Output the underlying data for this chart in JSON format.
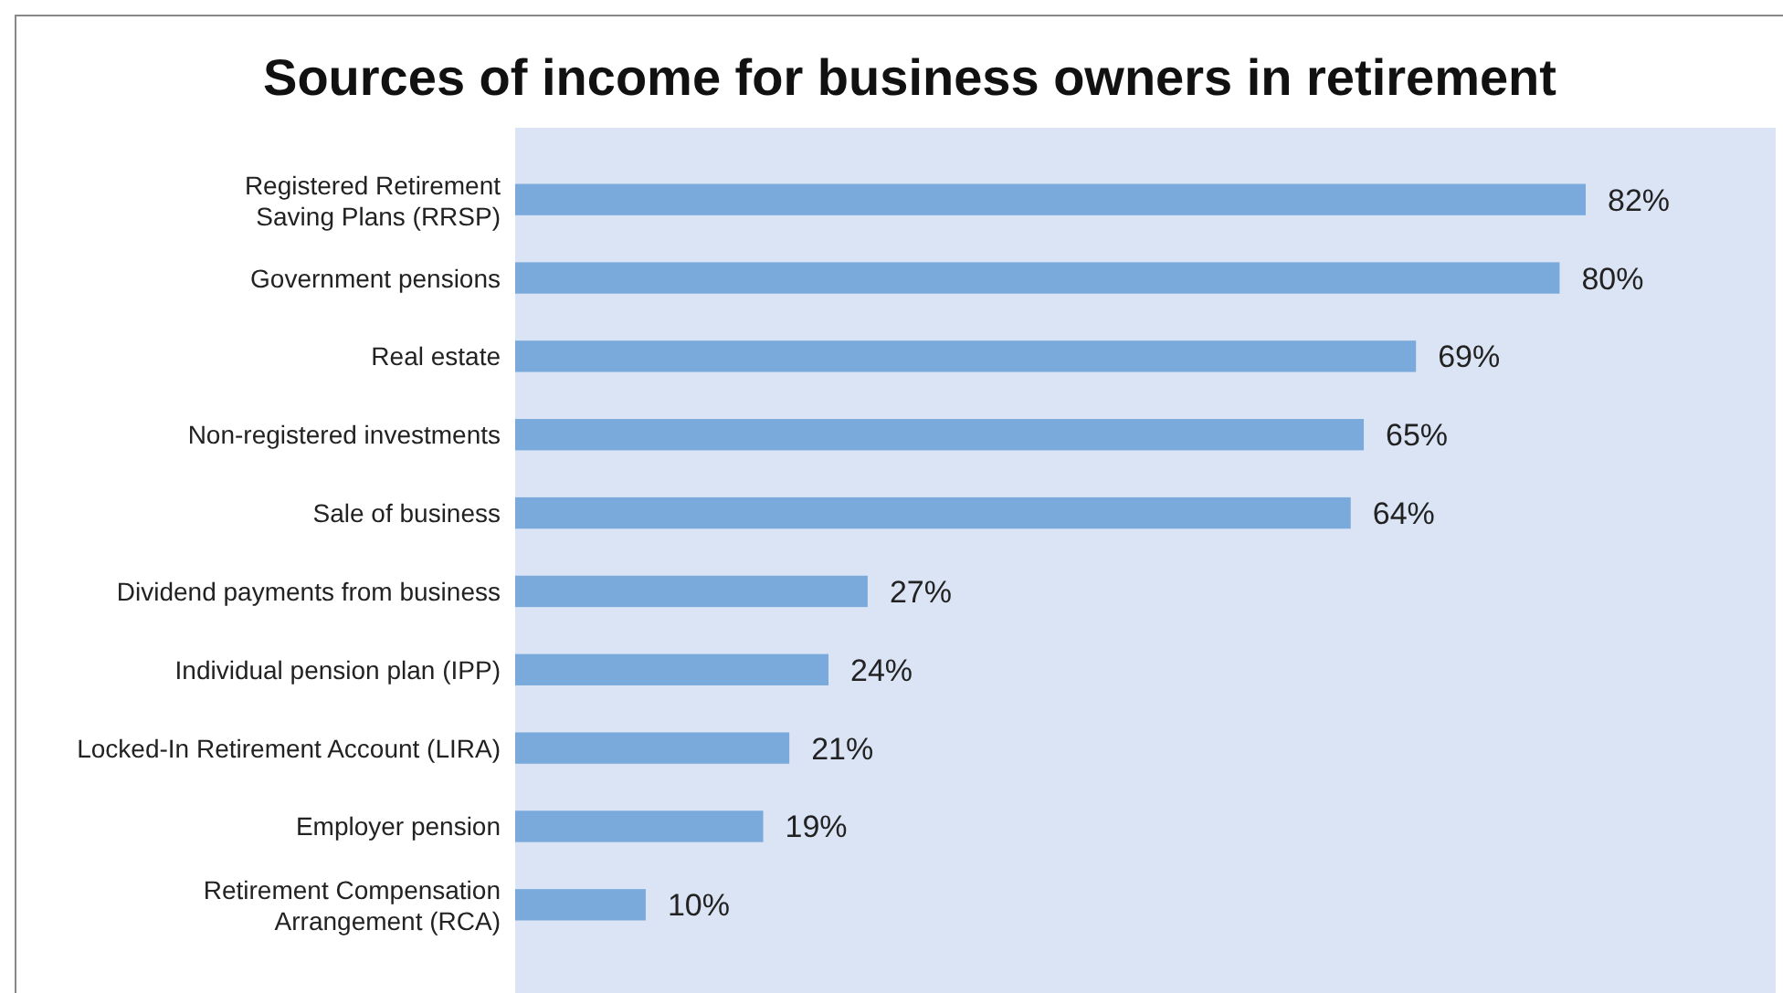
{
  "chart_data": {
    "type": "bar",
    "orientation": "horizontal",
    "title": "Sources of income for business owners in retirement",
    "categories": [
      "Registered Retirement\nSaving Plans (RRSP)",
      "Government pensions",
      "Real estate",
      "Non-registered investments",
      "Sale of business",
      "Dividend payments from business",
      "Individual pension plan (IPP)",
      "Locked-In Retirement Account (LIRA)",
      "Employer pension",
      "Retirement Compensation\nArrangement (RCA)"
    ],
    "values": [
      82,
      80,
      69,
      65,
      64,
      27,
      24,
      21,
      19,
      10
    ],
    "value_labels": [
      "82%",
      "80%",
      "69%",
      "65%",
      "64%",
      "27%",
      "24%",
      "21%",
      "19%",
      "10%"
    ],
    "color": "#7aaadb"
  }
}
